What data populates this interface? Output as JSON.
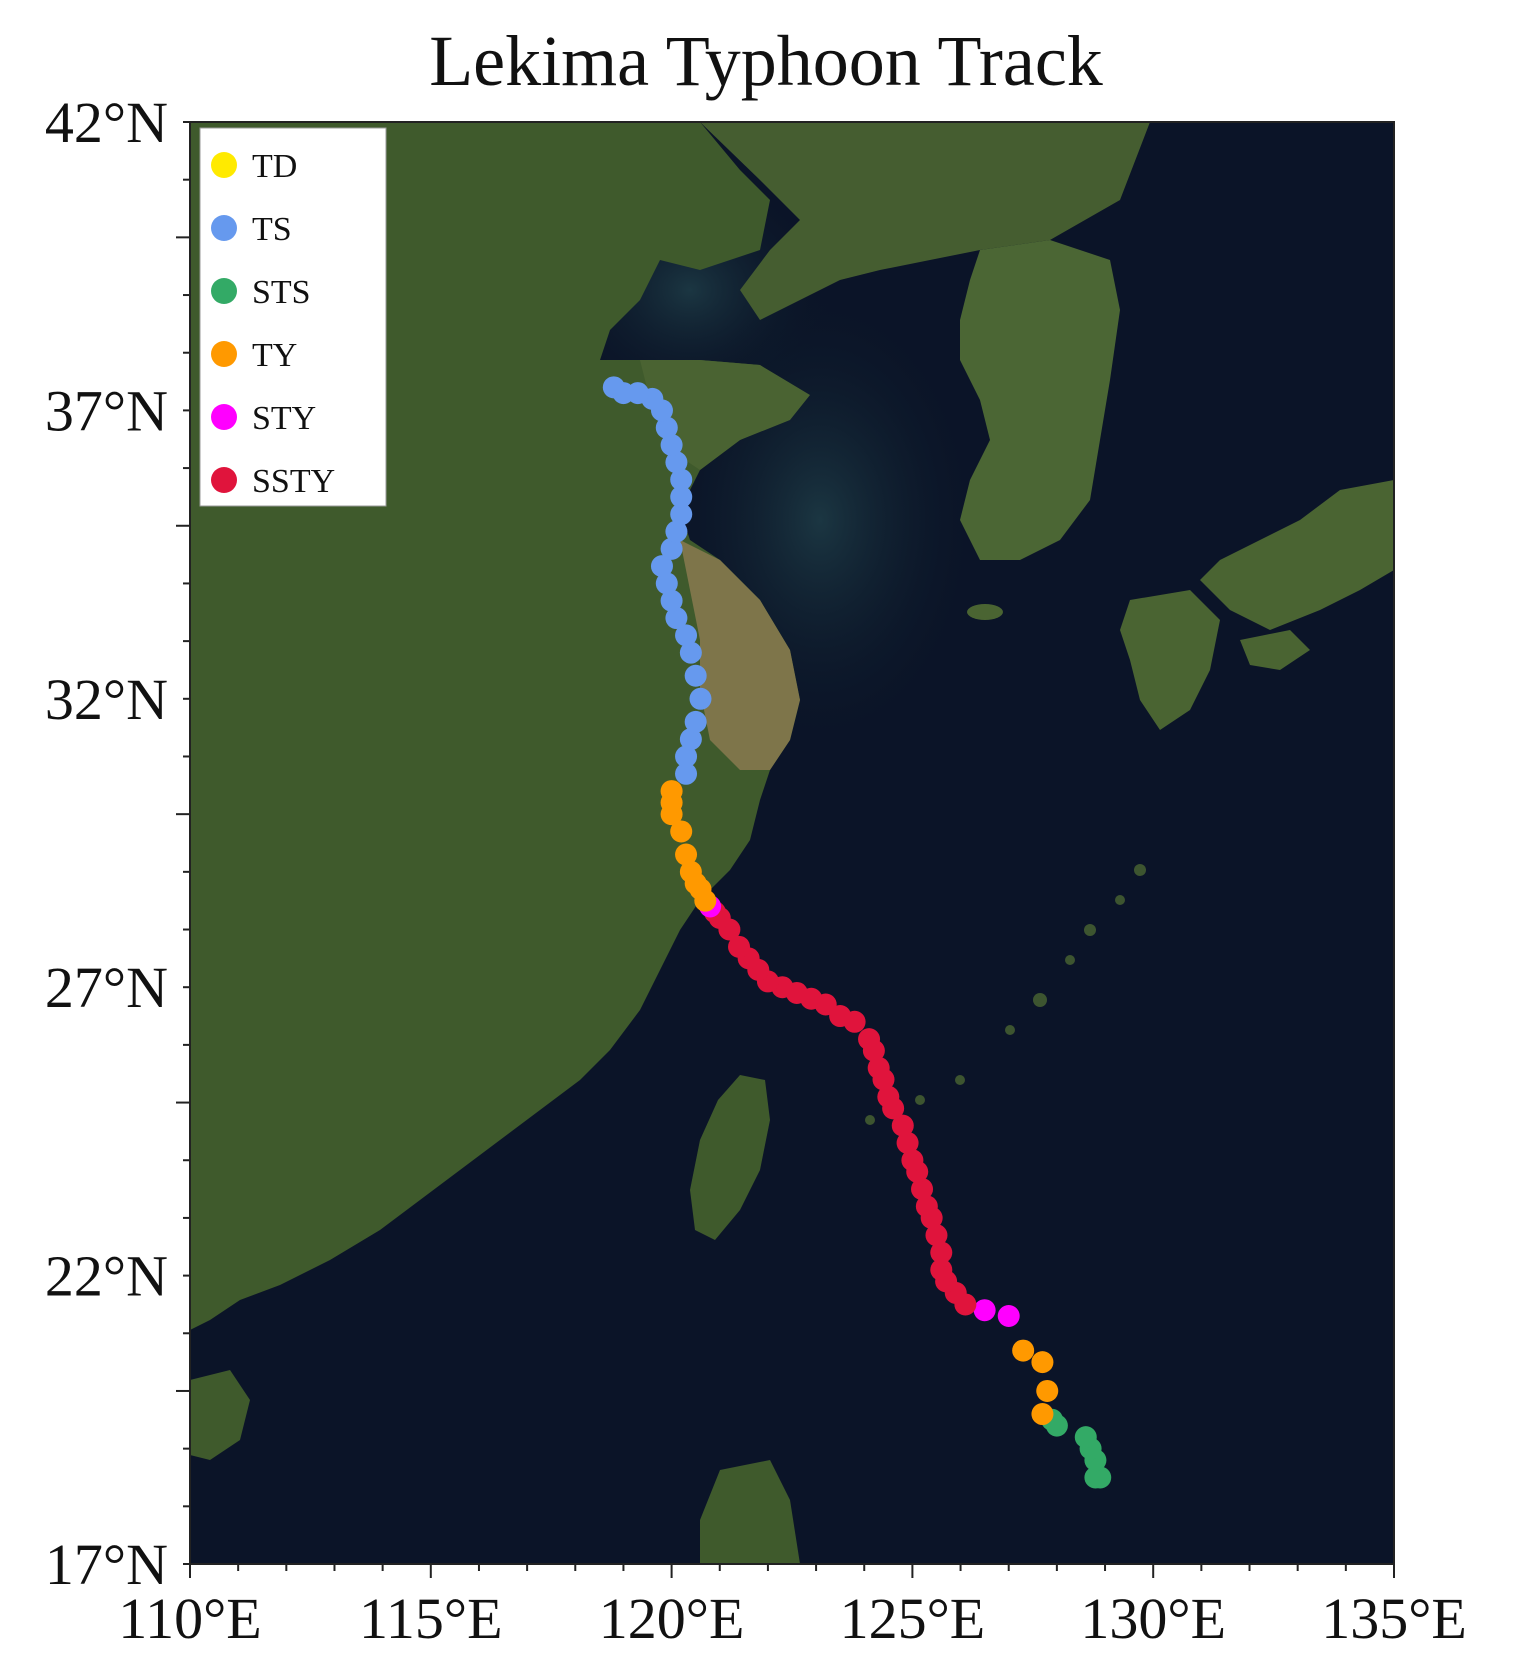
{
  "title": "Lekima Typhoon Track",
  "legend": {
    "placement": "top-left",
    "items": [
      {
        "label": "TD",
        "color": "#ffea00"
      },
      {
        "label": "TS",
        "color": "#6699ee"
      },
      {
        "label": "STS",
        "color": "#33aa66"
      },
      {
        "label": "TY",
        "color": "#ff9900"
      },
      {
        "label": "STY",
        "color": "#ff00ff"
      },
      {
        "label": "SSTY",
        "color": "#e0143c"
      }
    ]
  },
  "chart_data": {
    "type": "scatter",
    "title": "Lekima Typhoon Track",
    "xlim": [
      110,
      135
    ],
    "ylim": [
      17,
      42
    ],
    "x_ticks": [
      {
        "value": 110,
        "label": "110°E"
      },
      {
        "value": 115,
        "label": "115°E"
      },
      {
        "value": 120,
        "label": "120°E"
      },
      {
        "value": 125,
        "label": "125°E"
      },
      {
        "value": 130,
        "label": "130°E"
      },
      {
        "value": 135,
        "label": "135°E"
      }
    ],
    "y_ticks": [
      {
        "value": 17,
        "label": "17°N"
      },
      {
        "value": 22,
        "label": "22°N"
      },
      {
        "value": 27,
        "label": "27°N"
      },
      {
        "value": 32,
        "label": "32°N"
      },
      {
        "value": 37,
        "label": "37°N"
      },
      {
        "value": 42,
        "label": "42°N"
      }
    ],
    "background": "satellite imagery",
    "series": [
      {
        "name": "STS",
        "color": "#33aa66",
        "points": [
          [
            128.9,
            18.5
          ],
          [
            128.8,
            18.5
          ],
          [
            128.8,
            18.8
          ],
          [
            128.7,
            19.0
          ],
          [
            128.6,
            19.2
          ],
          [
            128.0,
            19.4
          ],
          [
            127.9,
            19.5
          ]
        ]
      },
      {
        "name": "TY",
        "color": "#ff9900",
        "points": [
          [
            127.7,
            19.6
          ],
          [
            127.8,
            20.0
          ],
          [
            127.7,
            20.5
          ],
          [
            127.3,
            20.7
          ]
        ]
      },
      {
        "name": "STY",
        "color": "#ff00ff",
        "points": [
          [
            127.0,
            21.3
          ],
          [
            126.5,
            21.4
          ]
        ]
      },
      {
        "name": "SSTY",
        "color": "#e0143c",
        "points": [
          [
            126.1,
            21.5
          ],
          [
            125.9,
            21.7
          ],
          [
            125.7,
            21.9
          ],
          [
            125.6,
            22.1
          ],
          [
            125.6,
            22.4
          ],
          [
            125.5,
            22.7
          ],
          [
            125.4,
            23.0
          ],
          [
            125.3,
            23.2
          ],
          [
            125.2,
            23.5
          ],
          [
            125.1,
            23.8
          ],
          [
            125.0,
            24.0
          ],
          [
            124.9,
            24.3
          ],
          [
            124.8,
            24.6
          ],
          [
            124.6,
            24.9
          ],
          [
            124.5,
            25.1
          ],
          [
            124.4,
            25.4
          ],
          [
            124.3,
            25.6
          ],
          [
            124.2,
            25.9
          ],
          [
            124.1,
            26.1
          ],
          [
            123.8,
            26.4
          ],
          [
            123.5,
            26.5
          ],
          [
            123.2,
            26.7
          ],
          [
            122.9,
            26.8
          ],
          [
            122.6,
            26.9
          ],
          [
            122.3,
            27.0
          ],
          [
            122.0,
            27.1
          ],
          [
            121.8,
            27.3
          ],
          [
            121.6,
            27.5
          ],
          [
            121.4,
            27.7
          ],
          [
            121.2,
            28.0
          ],
          [
            121.0,
            28.2
          ],
          [
            120.9,
            28.3
          ]
        ]
      },
      {
        "name": "STY",
        "color": "#ff00ff",
        "points": [
          [
            120.8,
            28.4
          ]
        ]
      },
      {
        "name": "TY",
        "color": "#ff9900",
        "points": [
          [
            120.7,
            28.5
          ],
          [
            120.6,
            28.7
          ],
          [
            120.5,
            28.8
          ],
          [
            120.4,
            29.0
          ],
          [
            120.3,
            29.3
          ],
          [
            120.2,
            29.7
          ],
          [
            120.0,
            30.0
          ],
          [
            120.0,
            30.2
          ],
          [
            120.0,
            30.4
          ]
        ]
      },
      {
        "name": "TS",
        "color": "#6699ee",
        "points": [
          [
            120.3,
            30.7
          ],
          [
            120.3,
            31.0
          ],
          [
            120.4,
            31.3
          ],
          [
            120.5,
            31.6
          ],
          [
            120.6,
            32.0
          ],
          [
            120.5,
            32.4
          ],
          [
            120.4,
            32.8
          ],
          [
            120.3,
            33.1
          ],
          [
            120.1,
            33.4
          ],
          [
            120.0,
            33.7
          ],
          [
            119.9,
            34.0
          ],
          [
            119.8,
            34.3
          ],
          [
            120.0,
            34.6
          ],
          [
            120.1,
            34.9
          ],
          [
            120.2,
            35.2
          ],
          [
            120.2,
            35.5
          ],
          [
            120.2,
            35.8
          ],
          [
            120.1,
            36.1
          ],
          [
            120.0,
            36.4
          ],
          [
            119.9,
            36.7
          ],
          [
            119.8,
            37.0
          ],
          [
            119.6,
            37.2
          ],
          [
            119.3,
            37.3
          ],
          [
            119.0,
            37.3
          ],
          [
            118.8,
            37.4
          ]
        ]
      }
    ]
  }
}
